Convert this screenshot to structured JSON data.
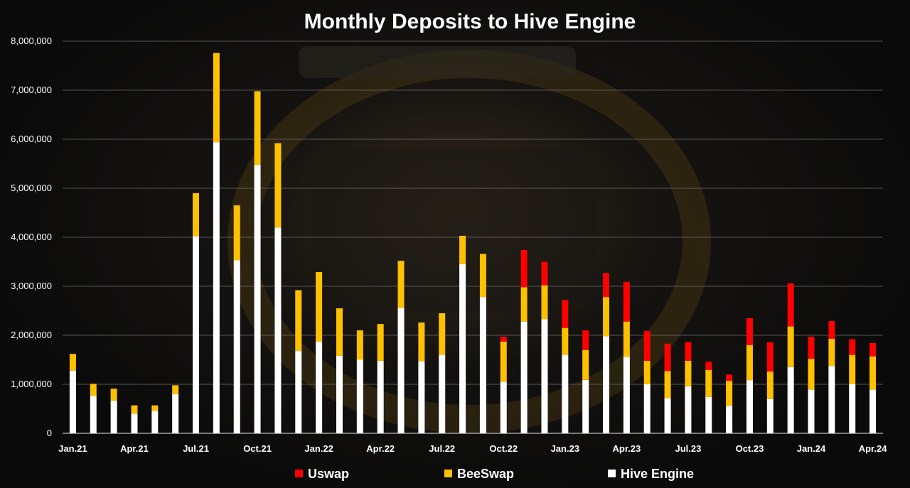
{
  "chart_data": {
    "type": "bar",
    "stacked": true,
    "title": "Monthly Deposits to Hive Engine",
    "xlabel": "",
    "ylabel": "",
    "ylim": [
      0,
      8000000
    ],
    "yticks": [
      0,
      1000000,
      2000000,
      3000000,
      4000000,
      5000000,
      6000000,
      7000000,
      8000000
    ],
    "ytick_labels": [
      "0",
      "1,000,000",
      "2,000,000",
      "3,000,000",
      "4,000,000",
      "5,000,000",
      "6,000,000",
      "7,000,000",
      "8,000,000"
    ],
    "grid": true,
    "legend_position": "bottom",
    "categories": [
      "Jan.21",
      "Feb.21",
      "Mar.21",
      "Apr.21",
      "May.21",
      "Jun.21",
      "Jul.21",
      "Aug.21",
      "Sep.21",
      "Oct.21",
      "Nov.21",
      "Dec.21",
      "Jan.22",
      "Feb.22",
      "Mar.22",
      "Apr.22",
      "May.22",
      "Jun.22",
      "Jul.22",
      "Aug.22",
      "Sep.22",
      "Oct.22",
      "Nov.22",
      "Dec.22",
      "Jan.23",
      "Feb.23",
      "Mar.23",
      "Apr.23",
      "May.23",
      "Jun.23",
      "Jul.23",
      "Aug.23",
      "Sep.23",
      "Oct.23",
      "Nov.23",
      "Dec.23",
      "Jan.24",
      "Feb.24",
      "Mar.24",
      "Apr.24"
    ],
    "tick_labels_shown": [
      "Jan.21",
      "Apr.21",
      "Jul.21",
      "Oct.21",
      "Jan.22",
      "Apr.22",
      "Jul.22",
      "Oct.22",
      "Jan.23",
      "Apr.23",
      "Jul.23",
      "Oct.23",
      "Jan.24",
      "Apr.24"
    ],
    "series": [
      {
        "name": "Hive Engine",
        "color": "#ffffff",
        "values": [
          1280000,
          760000,
          670000,
          400000,
          460000,
          800000,
          4020000,
          5940000,
          3530000,
          5480000,
          4200000,
          1680000,
          1870000,
          1580000,
          1500000,
          1480000,
          2560000,
          1470000,
          1600000,
          3450000,
          2780000,
          1050000,
          2280000,
          2330000,
          1600000,
          1090000,
          1980000,
          1560000,
          1000000,
          720000,
          960000,
          740000,
          560000,
          1080000,
          700000,
          1350000,
          890000,
          1370000,
          1000000,
          890000
        ]
      },
      {
        "name": "BeeSwap",
        "color": "#ffc000",
        "values": [
          340000,
          250000,
          240000,
          170000,
          110000,
          180000,
          880000,
          1820000,
          1120000,
          1500000,
          1720000,
          1240000,
          1420000,
          970000,
          600000,
          750000,
          960000,
          790000,
          850000,
          580000,
          880000,
          820000,
          700000,
          690000,
          550000,
          610000,
          800000,
          720000,
          480000,
          550000,
          520000,
          550000,
          510000,
          720000,
          560000,
          830000,
          630000,
          560000,
          600000,
          680000
        ]
      },
      {
        "name": "Uswap",
        "color": "#ff0000",
        "values": [
          0,
          0,
          0,
          0,
          0,
          0,
          0,
          0,
          0,
          0,
          0,
          0,
          0,
          0,
          0,
          0,
          0,
          0,
          0,
          0,
          0,
          100000,
          760000,
          480000,
          570000,
          400000,
          490000,
          810000,
          610000,
          560000,
          380000,
          170000,
          130000,
          550000,
          600000,
          880000,
          450000,
          360000,
          320000,
          270000
        ]
      }
    ]
  }
}
